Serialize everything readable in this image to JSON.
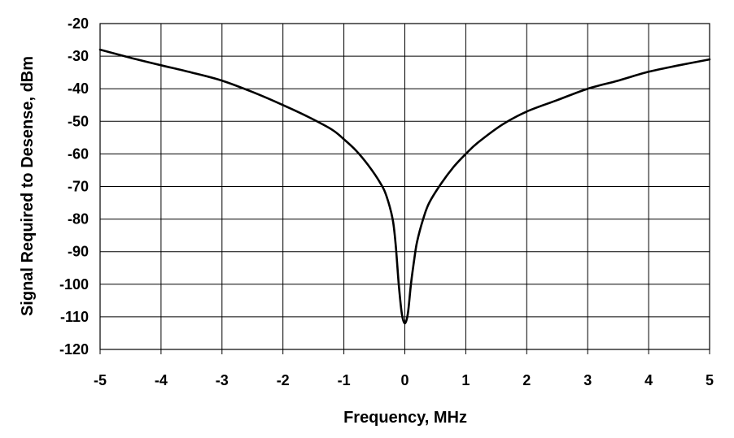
{
  "chart_data": {
    "type": "line",
    "title": "",
    "xlabel": "Frequency, MHz",
    "ylabel": "Signal Required to Desense, dBm",
    "xlim": [
      -5,
      5
    ],
    "ylim": [
      -120,
      -20
    ],
    "xticks": [
      -5,
      -4,
      -3,
      -2,
      -1,
      0,
      1,
      2,
      3,
      4,
      5
    ],
    "yticks": [
      -20,
      -30,
      -40,
      -50,
      -60,
      -70,
      -80,
      -90,
      -100,
      -110,
      -120
    ],
    "grid": true,
    "legend": "none",
    "colors": {
      "line": "#000000",
      "grid": "#000000",
      "background": "#ffffff"
    },
    "series": [
      {
        "x": [
          -5,
          -4.5,
          -4,
          -3.5,
          -3,
          -2.5,
          -2,
          -1.6,
          -1.2,
          -1,
          -0.8,
          -0.6,
          -0.4,
          -0.3,
          -0.2,
          -0.15,
          -0.1,
          -0.05,
          0,
          0.05,
          0.1,
          0.15,
          0.2,
          0.3,
          0.4,
          0.6,
          0.8,
          1,
          1.2,
          1.6,
          2,
          2.5,
          3,
          3.5,
          4,
          4.5,
          5
        ],
        "y": [
          -28,
          -30.5,
          -32.8,
          -35,
          -37.5,
          -41,
          -45,
          -48.5,
          -52.5,
          -55.5,
          -59,
          -63.5,
          -69,
          -73,
          -80,
          -88,
          -100,
          -109,
          -112,
          -109,
          -100,
          -93,
          -87,
          -80,
          -75,
          -69,
          -64,
          -60,
          -56.5,
          -51,
          -47,
          -43.5,
          -40,
          -37.5,
          -34.8,
          -32.8,
          -31
        ]
      }
    ]
  }
}
